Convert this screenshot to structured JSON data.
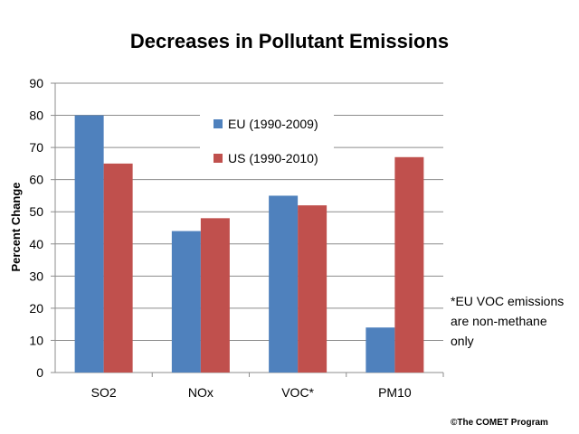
{
  "chart_data": {
    "type": "bar",
    "title": "Decreases in Pollutant Emissions",
    "xlabel": "",
    "ylabel": "Percent Change",
    "categories": [
      "SO2",
      "NOx",
      "VOC*",
      "PM10"
    ],
    "series": [
      {
        "name": "EU (1990-2009)",
        "values": [
          80,
          44,
          55,
          14
        ],
        "color": "#4F81BD"
      },
      {
        "name": "US (1990-2010)",
        "values": [
          65,
          48,
          52,
          67
        ],
        "color": "#C0504D"
      }
    ],
    "ylim": [
      0,
      90
    ],
    "yticks": [
      "0",
      "10",
      "20",
      "30",
      "40",
      "50",
      "60",
      "70",
      "80",
      "90"
    ],
    "grid": true,
    "legend_position": "top-center"
  },
  "note": {
    "lines": [
      "*EU VOC emissions",
      "are non-methane",
      "only"
    ]
  },
  "credit": "©The COMET Program"
}
